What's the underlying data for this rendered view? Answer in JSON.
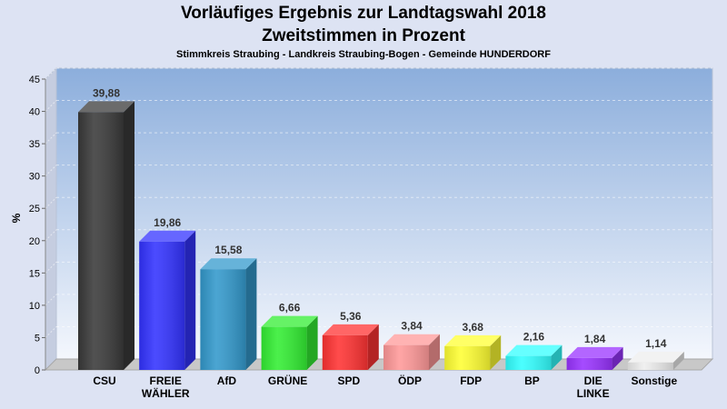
{
  "chart_data": {
    "type": "bar",
    "title": "Vorläufiges Ergebnis zur Landtagswahl 2018",
    "subtitle": "Zweitstimmen in Prozent",
    "caption": "Stimmkreis Straubing - Landkreis Straubing-Bogen - Gemeinde HUNDERDORF",
    "ylabel": "%",
    "ylim": [
      0,
      45
    ],
    "yticks": [
      "0",
      "5",
      "10",
      "15",
      "20",
      "25",
      "30",
      "35",
      "40",
      "45"
    ],
    "grid": true,
    "categories": [
      {
        "lines": [
          "CSU"
        ]
      },
      {
        "lines": [
          "FREIE",
          "WÄHLER"
        ]
      },
      {
        "lines": [
          "AfD"
        ]
      },
      {
        "lines": [
          "GRÜNE"
        ]
      },
      {
        "lines": [
          "SPD"
        ]
      },
      {
        "lines": [
          "ÖDP"
        ]
      },
      {
        "lines": [
          "FDP"
        ]
      },
      {
        "lines": [
          "BP"
        ]
      },
      {
        "lines": [
          "DIE",
          "LINKE"
        ]
      },
      {
        "lines": [
          "Sonstige"
        ]
      }
    ],
    "values": [
      39.88,
      19.86,
      15.58,
      6.66,
      5.36,
      3.84,
      3.68,
      2.16,
      1.84,
      1.14
    ],
    "value_labels": [
      "39,88",
      "19,86",
      "15,58",
      "6,66",
      "5,36",
      "3,84",
      "3,68",
      "2,16",
      "1,84",
      "1,14"
    ],
    "colors": [
      "#3a3a3a",
      "#3333ff",
      "#3399cc",
      "#33ee33",
      "#ff3333",
      "#ff9999",
      "#ffff33",
      "#33ffff",
      "#9933ff",
      "#eeeeee"
    ]
  }
}
